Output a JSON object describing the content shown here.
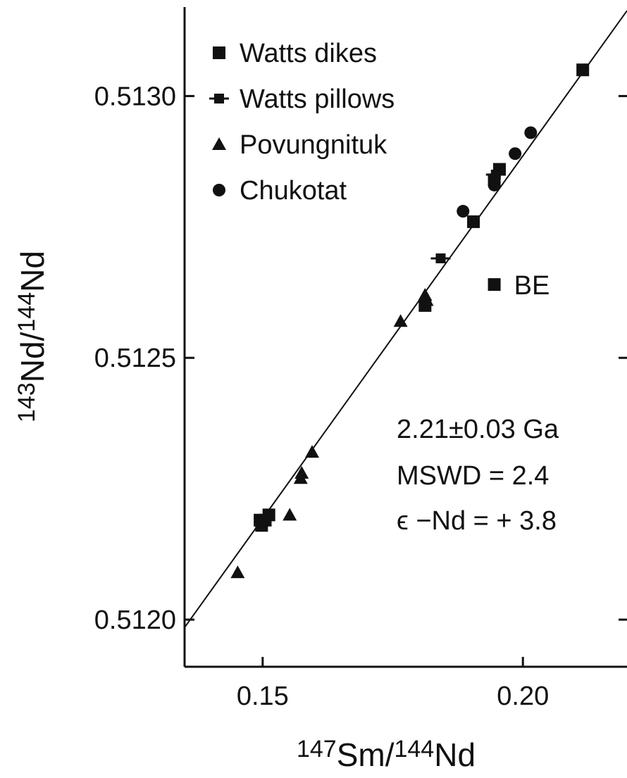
{
  "chart_data": {
    "type": "scatter",
    "xlabel": {
      "pre1": "147",
      "main1": "Sm/",
      "pre2": "144",
      "main2": "Nd"
    },
    "ylabel": {
      "pre1": "143",
      "main1": "Nd/",
      "pre2": "144",
      "main2": "Nd"
    },
    "xlim": [
      0.135,
      0.22
    ],
    "ylim": [
      0.51191,
      0.51317
    ],
    "x_ticks": [
      0.15,
      0.2
    ],
    "x_tick_labels": [
      "0.15",
      "0.20"
    ],
    "y_ticks": [
      0.512,
      0.5125,
      0.513
    ],
    "y_tick_labels": [
      "0.5120",
      "0.5125",
      "0.5130"
    ],
    "isochron": {
      "x": [
        0.135,
        0.22
      ],
      "y": [
        0.511985,
        0.513163
      ]
    },
    "series": [
      {
        "name": "Watts dikes",
        "marker": "square",
        "points": [
          [
            0.1495,
            0.51219
          ],
          [
            0.1498,
            0.51218
          ],
          [
            0.1505,
            0.51219
          ],
          [
            0.1512,
            0.5122
          ],
          [
            0.1812,
            0.5126
          ],
          [
            0.1905,
            0.51276
          ],
          [
            0.1945,
            0.51284
          ],
          [
            0.1955,
            0.51286
          ],
          [
            0.2115,
            0.51305
          ],
          [
            0.1945,
            0.51264
          ]
        ]
      },
      {
        "name": "Watts pillows",
        "marker": "square-errorbar",
        "points": [
          [
            0.1842,
            0.51269
          ],
          [
            0.1948,
            0.51285
          ]
        ]
      },
      {
        "name": "Povungnituk",
        "marker": "triangle",
        "points": [
          [
            0.1452,
            0.51209
          ],
          [
            0.1552,
            0.5122
          ],
          [
            0.1573,
            0.51227
          ],
          [
            0.1575,
            0.51228
          ],
          [
            0.1595,
            0.51232
          ],
          [
            0.1765,
            0.51257
          ],
          [
            0.1812,
            0.51262
          ],
          [
            0.1815,
            0.51261
          ]
        ]
      },
      {
        "name": "Chukotat",
        "marker": "circle",
        "points": [
          [
            0.1885,
            0.51278
          ],
          [
            0.1945,
            0.51283
          ],
          [
            0.1985,
            0.51289
          ],
          [
            0.2015,
            0.51293
          ]
        ]
      }
    ],
    "point_labels": [
      {
        "text": "BE",
        "x": 0.1945,
        "y": 0.51264
      }
    ],
    "annotations": [
      "2.21±0.03 Ga",
      "MSWD = 2.4",
      "ϵ −Nd = + 3.8"
    ],
    "legend": "top-left",
    "grid": false
  }
}
